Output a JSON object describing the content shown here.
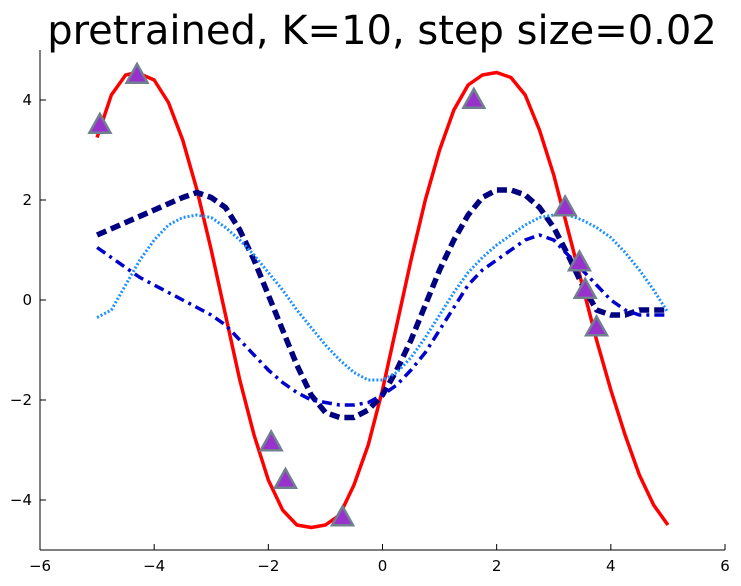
{
  "chart_data": {
    "type": "line",
    "title": "pretrained, K=10, step size=0.02",
    "xlabel": "",
    "ylabel": "",
    "xlim": [
      -6,
      6
    ],
    "ylim": [
      -5,
      5
    ],
    "xticks": [
      -6,
      -4,
      -2,
      0,
      2,
      4,
      6
    ],
    "yticks": [
      -4,
      -2,
      0,
      2,
      4
    ],
    "xtick_labels": [
      "−6",
      "−4",
      "−2",
      "0",
      "2",
      "4",
      "6"
    ],
    "ytick_labels": [
      "−4",
      "−2",
      "0",
      "2",
      "4"
    ],
    "grid": false,
    "legend": "none",
    "series": [
      {
        "style": "solid",
        "color": "#ff0000",
        "x": [
          -5.0,
          -4.75,
          -4.5,
          -4.3,
          -4.0,
          -3.75,
          -3.5,
          -3.25,
          -3.0,
          -2.75,
          -2.5,
          -2.25,
          -2.0,
          -1.75,
          -1.5,
          -1.25,
          -1.0,
          -0.75,
          -0.5,
          -0.25,
          0.0,
          0.25,
          0.5,
          0.75,
          1.0,
          1.25,
          1.5,
          1.75,
          2.0,
          2.25,
          2.5,
          2.75,
          3.0,
          3.25,
          3.5,
          3.75,
          4.0,
          4.25,
          4.5,
          4.75,
          5.0
        ],
        "y": [
          3.25,
          4.1,
          4.5,
          4.55,
          4.4,
          3.95,
          3.2,
          2.2,
          1.0,
          -0.3,
          -1.6,
          -2.7,
          -3.6,
          -4.2,
          -4.5,
          -4.55,
          -4.5,
          -4.3,
          -3.7,
          -2.9,
          -1.8,
          -0.5,
          0.8,
          2.0,
          3.0,
          3.8,
          4.3,
          4.5,
          4.55,
          4.45,
          4.1,
          3.4,
          2.5,
          1.4,
          0.3,
          -0.8,
          -1.8,
          -2.7,
          -3.5,
          -4.1,
          -4.5
        ]
      },
      {
        "style": "dashed",
        "color": "#000080",
        "x": [
          -5.0,
          -4.5,
          -4.0,
          -3.5,
          -3.25,
          -3.0,
          -2.75,
          -2.5,
          -2.25,
          -2.0,
          -1.75,
          -1.5,
          -1.25,
          -1.0,
          -0.75,
          -0.5,
          -0.25,
          0.0,
          0.25,
          0.5,
          0.75,
          1.0,
          1.25,
          1.5,
          1.75,
          2.0,
          2.25,
          2.5,
          2.75,
          3.0,
          3.25,
          3.5,
          3.75,
          4.0,
          4.25,
          4.5,
          4.75,
          5.0
        ],
        "y": [
          1.3,
          1.55,
          1.8,
          2.05,
          2.15,
          2.05,
          1.85,
          1.4,
          0.8,
          0.1,
          -0.6,
          -1.3,
          -1.9,
          -2.25,
          -2.35,
          -2.35,
          -2.2,
          -1.9,
          -1.4,
          -0.8,
          -0.1,
          0.6,
          1.2,
          1.7,
          2.05,
          2.2,
          2.2,
          2.1,
          1.85,
          1.45,
          0.9,
          0.3,
          -0.2,
          -0.3,
          -0.3,
          -0.2,
          -0.2,
          -0.2
        ]
      },
      {
        "style": "dotted",
        "color": "#1e90ff",
        "x": [
          -5.0,
          -4.75,
          -4.5,
          -4.25,
          -4.0,
          -3.75,
          -3.5,
          -3.25,
          -3.0,
          -2.75,
          -2.5,
          -2.25,
          -2.0,
          -1.75,
          -1.5,
          -1.25,
          -1.0,
          -0.75,
          -0.5,
          -0.25,
          0.0,
          0.25,
          0.5,
          0.75,
          1.0,
          1.25,
          1.5,
          1.75,
          2.0,
          2.25,
          2.5,
          2.75,
          3.0,
          3.25,
          3.5,
          3.75,
          4.0,
          4.25,
          4.5,
          4.75,
          5.0
        ],
        "y": [
          -0.35,
          -0.2,
          0.3,
          0.8,
          1.2,
          1.5,
          1.65,
          1.7,
          1.65,
          1.45,
          1.2,
          0.9,
          0.55,
          0.2,
          -0.2,
          -0.55,
          -0.9,
          -1.2,
          -1.45,
          -1.6,
          -1.6,
          -1.45,
          -1.15,
          -0.75,
          -0.3,
          0.15,
          0.55,
          0.85,
          1.1,
          1.3,
          1.5,
          1.65,
          1.7,
          1.7,
          1.6,
          1.45,
          1.25,
          0.95,
          0.6,
          0.2,
          -0.25
        ]
      },
      {
        "style": "dashdot",
        "color": "#0000cd",
        "x": [
          -5.0,
          -4.75,
          -4.5,
          -4.25,
          -4.0,
          -3.75,
          -3.5,
          -3.25,
          -3.0,
          -2.75,
          -2.5,
          -2.25,
          -2.0,
          -1.75,
          -1.5,
          -1.25,
          -1.0,
          -0.75,
          -0.5,
          -0.25,
          0.0,
          0.25,
          0.5,
          0.75,
          1.0,
          1.25,
          1.5,
          1.75,
          2.0,
          2.25,
          2.5,
          2.75,
          3.0,
          3.25,
          3.5,
          3.75,
          4.0,
          4.25,
          4.5,
          4.75,
          5.0
        ],
        "y": [
          1.05,
          0.85,
          0.65,
          0.45,
          0.3,
          0.15,
          0.0,
          -0.15,
          -0.3,
          -0.5,
          -0.8,
          -1.1,
          -1.4,
          -1.65,
          -1.85,
          -2.0,
          -2.05,
          -2.1,
          -2.1,
          -2.05,
          -1.9,
          -1.7,
          -1.4,
          -1.05,
          -0.6,
          -0.15,
          0.3,
          0.6,
          0.8,
          1.0,
          1.2,
          1.3,
          1.2,
          0.9,
          0.6,
          0.3,
          0.0,
          -0.2,
          -0.3,
          -0.3,
          -0.3
        ]
      }
    ],
    "points": {
      "marker": "triangle",
      "fill": "#9932cc",
      "stroke": "#708090",
      "x": [
        -4.95,
        -4.3,
        -1.95,
        -1.7,
        -0.7,
        1.6,
        3.2,
        3.45,
        3.55,
        3.75
      ],
      "y": [
        3.5,
        4.5,
        -2.85,
        -3.6,
        -4.35,
        4.0,
        1.85,
        0.75,
        0.2,
        -0.55
      ]
    }
  }
}
